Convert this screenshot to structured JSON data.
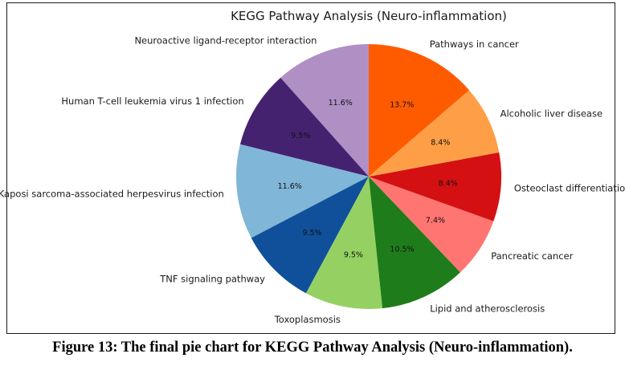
{
  "chart_data": {
    "type": "pie",
    "title": "KEGG Pathway Analysis (Neuro-inflammation)",
    "start_angle_deg": 90,
    "direction": "counterclockwise",
    "slices": [
      {
        "label": "Neuroactive ligand-receptor interaction",
        "pct": "11.6%",
        "value": 11.6,
        "color": "#b090c4"
      },
      {
        "label": "Human T-cell leukemia virus 1 infection",
        "pct": "9.5%",
        "value": 9.5,
        "color": "#452270"
      },
      {
        "label": "Kaposi sarcoma-associated herpesvirus infection",
        "pct": "11.6%",
        "value": 11.6,
        "color": "#80b6d7"
      },
      {
        "label": "TNF signaling pathway",
        "pct": "9.5%",
        "value": 9.5,
        "color": "#10509a"
      },
      {
        "label": "Toxoplasmosis",
        "pct": "9.5%",
        "value": 9.5,
        "color": "#94d162"
      },
      {
        "label": "Lipid and atherosclerosis",
        "pct": "10.5%",
        "value": 10.5,
        "color": "#1f7c1b"
      },
      {
        "label": "Pancreatic cancer",
        "pct": "7.4%",
        "value": 7.4,
        "color": "#fe7571"
      },
      {
        "label": "Osteoclast differentiation",
        "pct": "8.4%",
        "value": 8.4,
        "color": "#d51012"
      },
      {
        "label": "Alcoholic liver disease",
        "pct": "8.4%",
        "value": 8.4,
        "color": "#fe9f47"
      },
      {
        "label": "Pathways in cancer",
        "pct": "13.7%",
        "value": 13.7,
        "color": "#fe5b00"
      }
    ]
  },
  "caption": "Figure 13: The final pie chart for KEGG Pathway Analysis (Neuro-inflammation)."
}
